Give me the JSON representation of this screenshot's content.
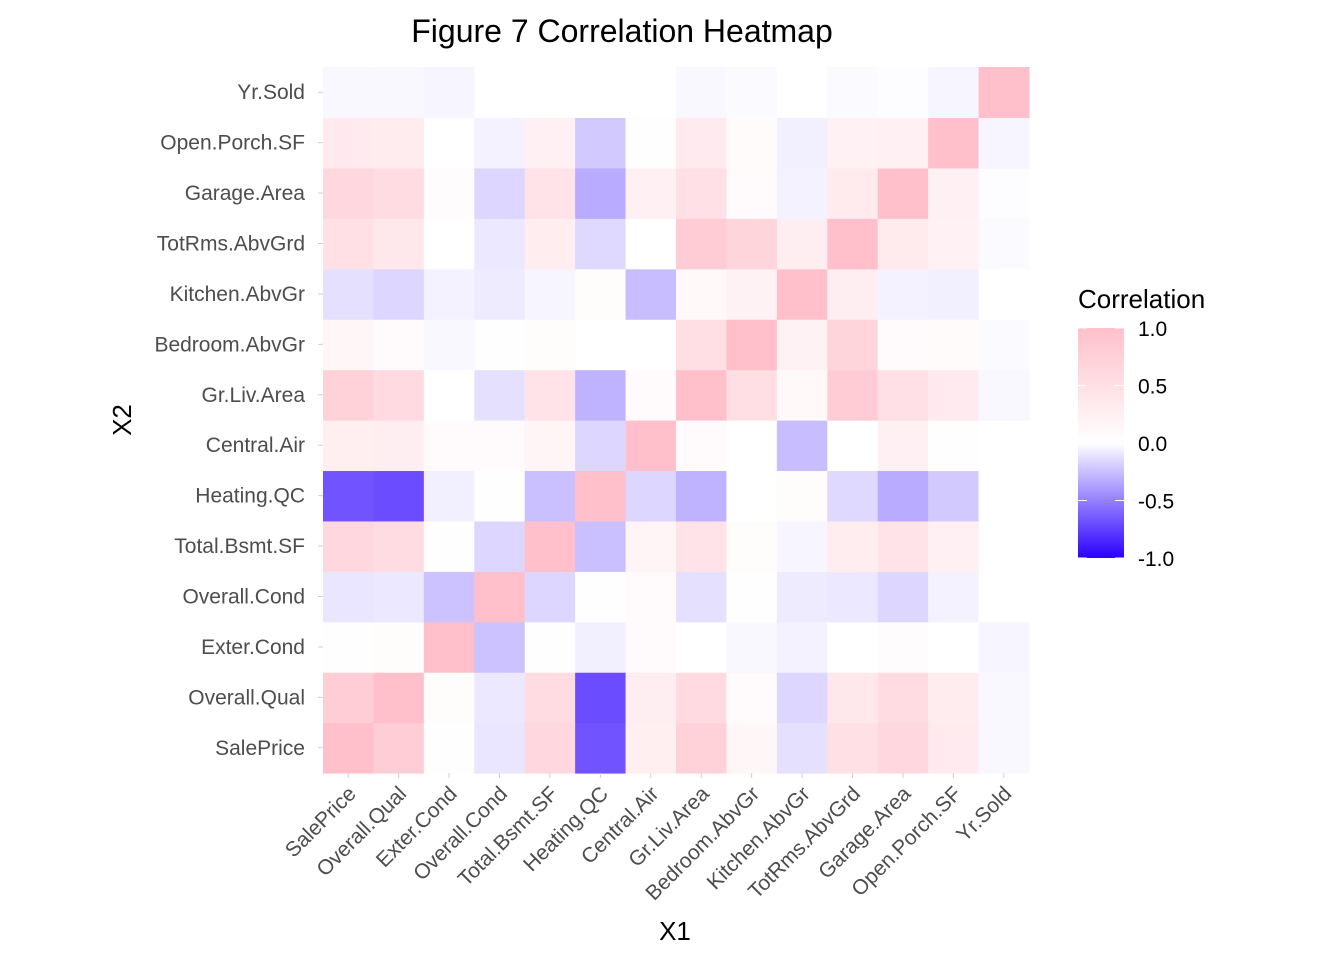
{
  "chart_data": {
    "type": "heatmap",
    "title": "Figure 7 Correlation Heatmap",
    "xlabel": "X1",
    "ylabel": "X2",
    "variables": [
      "SalePrice",
      "Overall.Qual",
      "Exter.Cond",
      "Overall.Cond",
      "Total.Bsmt.SF",
      "Heating.QC",
      "Central.Air",
      "Gr.Liv.Area",
      "Bedroom.AbvGr",
      "Kitchen.AbvGr",
      "TotRms.AbvGrd",
      "Garage.Area",
      "Open.Porch.SF",
      "Yr.Sold"
    ],
    "matrix": [
      [
        1.0,
        0.8,
        0.02,
        -0.1,
        0.63,
        -0.67,
        0.26,
        0.71,
        0.14,
        -0.12,
        0.5,
        0.64,
        0.31,
        -0.03
      ],
      [
        0.8,
        1.0,
        0.05,
        -0.09,
        0.55,
        -0.7,
        0.27,
        0.57,
        0.06,
        -0.16,
        0.37,
        0.56,
        0.3,
        -0.03
      ],
      [
        0.02,
        0.05,
        1.0,
        -0.24,
        0.01,
        -0.06,
        0.08,
        0.0,
        -0.03,
        -0.05,
        0.0,
        0.04,
        0.0,
        -0.04
      ],
      [
        -0.1,
        -0.09,
        -0.24,
        1.0,
        -0.16,
        0.02,
        0.08,
        -0.12,
        0.01,
        -0.08,
        -0.09,
        -0.16,
        -0.05,
        0.0
      ],
      [
        0.63,
        0.55,
        0.01,
        -0.16,
        1.0,
        -0.25,
        0.17,
        0.45,
        0.05,
        -0.04,
        0.28,
        0.44,
        0.24,
        0.0
      ],
      [
        -0.67,
        -0.7,
        -0.06,
        0.02,
        -0.25,
        1.0,
        -0.16,
        -0.3,
        0.0,
        0.05,
        -0.15,
        -0.33,
        -0.21,
        0.0
      ],
      [
        0.26,
        0.27,
        0.08,
        0.08,
        0.17,
        -0.16,
        1.0,
        0.08,
        0.0,
        -0.26,
        0.0,
        0.23,
        0.02,
        0.0
      ],
      [
        0.71,
        0.57,
        0.0,
        -0.12,
        0.45,
        -0.3,
        0.08,
        1.0,
        0.52,
        0.1,
        0.81,
        0.49,
        0.31,
        -0.03
      ],
      [
        0.14,
        0.06,
        -0.03,
        0.01,
        0.05,
        0.0,
        0.0,
        0.52,
        1.0,
        0.2,
        0.67,
        0.08,
        0.07,
        -0.02
      ],
      [
        -0.12,
        -0.16,
        -0.05,
        -0.08,
        -0.04,
        0.05,
        -0.26,
        0.1,
        0.2,
        1.0,
        0.27,
        -0.05,
        -0.06,
        0.0
      ],
      [
        0.5,
        0.37,
        0.0,
        -0.09,
        0.28,
        -0.15,
        0.0,
        0.81,
        0.67,
        0.27,
        1.0,
        0.32,
        0.22,
        -0.02
      ],
      [
        0.64,
        0.56,
        0.04,
        -0.16,
        0.44,
        -0.33,
        0.23,
        0.49,
        0.08,
        -0.05,
        0.32,
        1.0,
        0.24,
        -0.01
      ],
      [
        0.31,
        0.3,
        0.0,
        -0.05,
        0.24,
        -0.21,
        0.02,
        0.31,
        0.07,
        -0.06,
        0.22,
        0.24,
        1.0,
        -0.04
      ],
      [
        -0.03,
        -0.03,
        -0.04,
        0.0,
        0.0,
        0.0,
        0.0,
        -0.03,
        -0.02,
        0.0,
        -0.02,
        -0.01,
        -0.04,
        1.0
      ]
    ],
    "color_scale": {
      "low": "#2b00ff",
      "mid": "#ffffff",
      "high": "#ffc0cb",
      "limits": [
        -1,
        1
      ]
    },
    "legend": {
      "title": "Correlation",
      "breaks": [
        "1.0",
        "0.5",
        "0.0",
        "-0.5",
        "-1.0"
      ],
      "position": "right"
    },
    "grid": true
  }
}
